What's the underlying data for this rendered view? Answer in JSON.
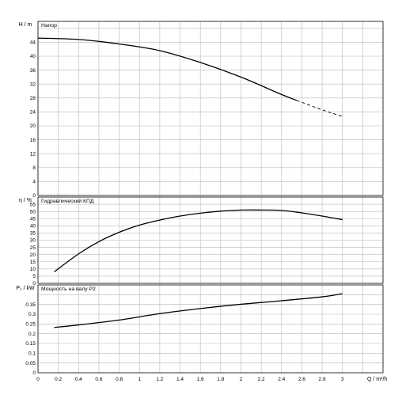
{
  "chart_data": [
    {
      "type": "line",
      "title": "Напор",
      "ylabel": "H / m",
      "xlim": [
        0,
        3.4
      ],
      "ylim": [
        0,
        50
      ],
      "y_ticks": [
        0,
        4,
        8,
        12,
        16,
        20,
        24,
        28,
        32,
        36,
        40,
        44
      ],
      "grid": true,
      "series": [
        {
          "style": "solid",
          "x": [
            0,
            0.4,
            0.8,
            1.2,
            1.6,
            2.0,
            2.4,
            2.55
          ],
          "y": [
            45.2,
            44.8,
            43.5,
            41.6,
            38.2,
            34.0,
            29.0,
            27.3
          ]
        },
        {
          "style": "dashed",
          "x": [
            2.55,
            2.8,
            3.0
          ],
          "y": [
            27.3,
            24.6,
            22.7
          ]
        }
      ]
    },
    {
      "type": "line",
      "title": "Гидравлический КПД",
      "ylabel": "η / %",
      "xlim": [
        0,
        3.4
      ],
      "ylim": [
        0,
        60
      ],
      "y_ticks": [
        0,
        5,
        10,
        15,
        20,
        25,
        30,
        35,
        40,
        45,
        50,
        55
      ],
      "grid": true,
      "series": [
        {
          "style": "solid",
          "x": [
            0.16,
            0.4,
            0.6,
            0.8,
            1.0,
            1.2,
            1.4,
            1.6,
            1.8,
            2.0,
            2.2,
            2.4,
            2.6,
            2.8,
            3.0
          ],
          "y": [
            8.0,
            20.5,
            29.0,
            35.5,
            40.5,
            44.0,
            46.8,
            48.8,
            50.2,
            51.0,
            51.0,
            50.7,
            49.0,
            46.8,
            44.3
          ]
        }
      ]
    },
    {
      "type": "line",
      "title": "Мощность на валу P2",
      "ylabel": "P₂ / kW",
      "xlabel": "Q / m³/h",
      "xlim": [
        0,
        3.4
      ],
      "ylim": [
        0,
        0.45
      ],
      "y_ticks": [
        0,
        0.05,
        0.1,
        0.15,
        0.2,
        0.25,
        0.3,
        0.35
      ],
      "y_tick_labels": [
        "0",
        "0.05",
        "0.1",
        "0.15",
        "0.2",
        "0.25",
        "0.3",
        "0.35"
      ],
      "x_ticks": [
        0,
        0.2,
        0.4,
        0.6,
        0.8,
        1,
        1.2,
        1.4,
        1.6,
        1.8,
        2,
        2.2,
        2.4,
        2.6,
        2.8,
        3
      ],
      "x_tick_labels": [
        "0",
        "0.2",
        "0.4",
        "0.6",
        "0.8",
        "1",
        "1.2",
        "1.4",
        "1.6",
        "1.8",
        "2",
        "2.2",
        "2.4",
        "2.6",
        "2.8",
        "3"
      ],
      "grid": true,
      "series": [
        {
          "style": "solid",
          "x": [
            0.16,
            0.4,
            0.8,
            1.2,
            1.6,
            2.0,
            2.4,
            2.8,
            3.0
          ],
          "y": [
            0.232,
            0.245,
            0.27,
            0.303,
            0.329,
            0.351,
            0.369,
            0.389,
            0.405
          ]
        }
      ]
    }
  ]
}
